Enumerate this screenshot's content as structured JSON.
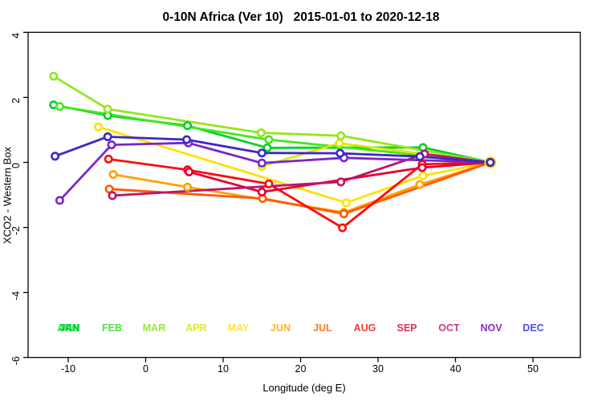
{
  "title": "0-10N Africa (Ver 10)   2015-01-01 to 2020-12-18",
  "chart_data": {
    "type": "line",
    "title": "0-10N Africa (Ver 10)   2015-01-01 to 2020-12-18",
    "xlabel": "Longitude (deg E)",
    "ylabel": "XCO2 - Western Box",
    "xlim": [
      -15.2,
      56.1
    ],
    "ylim": [
      -6,
      4
    ],
    "x_ticks": [
      -10,
      0,
      10,
      20,
      30,
      40,
      50
    ],
    "y_ticks": [
      -6,
      -4,
      -2,
      0,
      2,
      4
    ],
    "grid": false,
    "legend_position": "bottom-row-inside-plot",
    "annual_overlay_label": {
      "text": "ANN",
      "color": "#00E632"
    },
    "convergence_point": {
      "lon": 44.5,
      "value": 0.0
    },
    "series": [
      {
        "name": "JAN",
        "label_color": "#00B43C",
        "color": "#00D228",
        "points": [
          [
            -11.9,
            1.77
          ],
          [
            -4.9,
            1.44
          ],
          [
            5.4,
            1.13
          ],
          [
            15.7,
            0.45
          ],
          [
            35.8,
            0.46
          ],
          [
            44.5,
            0.0
          ]
        ]
      },
      {
        "name": "FEB",
        "label_color": "#50E63C",
        "color": "#46E61E",
        "points": [
          [
            -11.1,
            1.72
          ],
          [
            15.9,
            0.7
          ],
          [
            44.5,
            0.0
          ]
        ]
      },
      {
        "name": "MAR",
        "label_color": "#96E632",
        "color": "#96E61E",
        "points": [
          [
            -11.9,
            2.65
          ],
          [
            -4.9,
            1.64
          ],
          [
            14.9,
            0.91
          ],
          [
            25.2,
            0.82
          ],
          [
            44.5,
            0.0
          ]
        ]
      },
      {
        "name": "APR",
        "label_color": "#DCE632",
        "color": "#E1E600",
        "points": [
          [
            15.0,
            -0.12
          ],
          [
            25.0,
            0.59
          ],
          [
            44.5,
            0.0
          ]
        ]
      },
      {
        "name": "MAY",
        "label_color": "#FFE150",
        "color": "#FFE100",
        "points": [
          [
            -6.1,
            1.09
          ],
          [
            25.9,
            -1.24
          ],
          [
            35.8,
            -0.41
          ],
          [
            44.5,
            0.0
          ]
        ]
      },
      {
        "name": "JUN",
        "label_color": "#FFB432",
        "color": "#FFA000",
        "points": [
          [
            -4.2,
            -0.37
          ],
          [
            5.4,
            -0.76
          ],
          [
            25.6,
            -1.54
          ],
          [
            35.4,
            -0.68
          ],
          [
            44.5,
            0.0
          ]
        ]
      },
      {
        "name": "JUL",
        "label_color": "#FF7832",
        "color": "#FF5A00",
        "points": [
          [
            -4.7,
            -0.82
          ],
          [
            15.1,
            -1.11
          ],
          [
            25.6,
            -1.58
          ],
          [
            44.5,
            0.0
          ]
        ]
      },
      {
        "name": "AUG",
        "label_color": "#F03C3C",
        "color": "#FF0A0A",
        "points": [
          [
            -4.8,
            0.1
          ],
          [
            5.4,
            -0.23
          ],
          [
            15.9,
            -0.66
          ],
          [
            25.4,
            -2.01
          ],
          [
            35.7,
            -0.06
          ],
          [
            44.5,
            0.0
          ]
        ]
      },
      {
        "name": "SEP",
        "label_color": "#E62E50",
        "color": "#E60032",
        "points": [
          [
            5.6,
            -0.29
          ],
          [
            15.0,
            -0.91
          ],
          [
            35.7,
            -0.16
          ],
          [
            44.5,
            0.0
          ]
        ]
      },
      {
        "name": "OCT",
        "label_color": "#C83C8C",
        "color": "#BE1464",
        "points": [
          [
            -4.3,
            -1.02
          ],
          [
            25.2,
            -0.6
          ],
          [
            36.0,
            0.26
          ],
          [
            44.5,
            0.0
          ]
        ]
      },
      {
        "name": "NOV",
        "label_color": "#8232C8",
        "color": "#7828C8",
        "points": [
          [
            -11.1,
            -1.17
          ],
          [
            -4.4,
            0.54
          ],
          [
            5.5,
            0.6
          ],
          [
            15.0,
            -0.02
          ],
          [
            25.6,
            0.14
          ],
          [
            44.5,
            0.0
          ]
        ]
      },
      {
        "name": "DEC",
        "label_color": "#5050E6",
        "color": "#3C28C8",
        "points": [
          [
            -11.7,
            0.19
          ],
          [
            -4.9,
            0.79
          ],
          [
            5.3,
            0.7
          ],
          [
            15.0,
            0.29
          ],
          [
            25.1,
            0.28
          ],
          [
            35.4,
            0.18
          ],
          [
            44.5,
            0.0
          ]
        ]
      }
    ]
  }
}
